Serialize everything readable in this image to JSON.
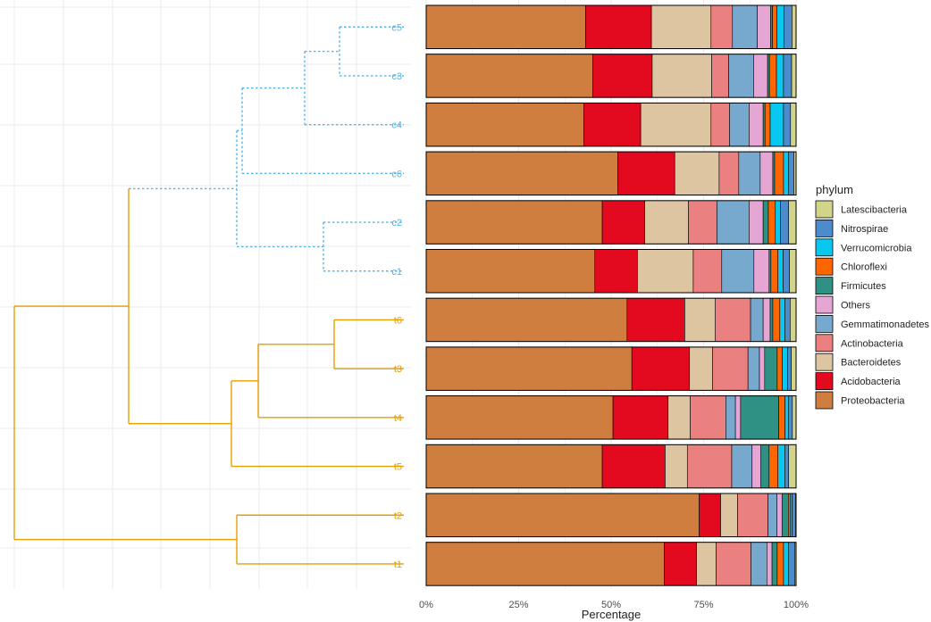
{
  "chart_data": [
    {
      "type": "dendrogram",
      "leaves": [
        "c5",
        "c3",
        "c4",
        "c6",
        "c2",
        "c1",
        "t6",
        "t3",
        "t4",
        "t5",
        "t2",
        "t1"
      ],
      "clusters": [
        {
          "group": "c",
          "color": "#56b4e9",
          "style": "dotted"
        },
        {
          "group": "t",
          "color": "#e69f00",
          "style": "solid"
        }
      ]
    },
    {
      "type": "bar",
      "orientation": "horizontal",
      "stacked": true,
      "xlabel": "Percentage",
      "xticks": [
        "0%",
        "25%",
        "50%",
        "75%",
        "100%"
      ],
      "xlim": [
        0,
        100
      ],
      "categories": [
        "c5",
        "c3",
        "c4",
        "c6",
        "c2",
        "c1",
        "t6",
        "t3",
        "t4",
        "t5",
        "t2",
        "t1"
      ],
      "legend": {
        "title": "phylum",
        "position": "right",
        "order": [
          "Latescibacteria",
          "Nitrospirae",
          "Verrucomicrobia",
          "Chloroflexi",
          "Firmicutes",
          "Others",
          "Gemmatimonadetes",
          "Actinobacteria",
          "Bacteroidetes",
          "Acidobacteria",
          "Proteobacteria"
        ]
      },
      "series": [
        {
          "name": "Proteobacteria",
          "color": "#d07e40",
          "values": [
            43.1,
            45.0,
            42.6,
            51.8,
            47.6,
            45.6,
            54.3,
            55.6,
            50.5,
            47.6,
            73.8,
            64.4
          ]
        },
        {
          "name": "Acidobacteria",
          "color": "#e30a1f",
          "values": [
            17.8,
            16.1,
            15.4,
            15.4,
            11.5,
            11.5,
            15.6,
            15.6,
            14.9,
            17.0,
            5.8,
            8.7
          ]
        },
        {
          "name": "Bacteroidetes",
          "color": "#ddc5a2",
          "values": [
            16.1,
            16.1,
            19.0,
            12.0,
            11.8,
            15.1,
            8.2,
            6.2,
            6.0,
            6.0,
            4.6,
            5.3
          ]
        },
        {
          "name": "Actinobacteria",
          "color": "#ea8080",
          "values": [
            5.8,
            4.6,
            5.0,
            5.3,
            7.7,
            7.7,
            9.6,
            9.6,
            9.6,
            12.0,
            8.2,
            9.4
          ]
        },
        {
          "name": "Gemmatimonadetes",
          "color": "#77a9cf",
          "values": [
            6.7,
            6.7,
            5.3,
            5.8,
            8.7,
            8.7,
            3.4,
            3.1,
            2.6,
            5.5,
            2.4,
            4.3
          ]
        },
        {
          "name": "Others",
          "color": "#e6a6d4",
          "values": [
            3.6,
            3.8,
            3.8,
            3.4,
            3.8,
            4.1,
            1.9,
            1.4,
            1.4,
            2.4,
            1.4,
            1.4
          ]
        },
        {
          "name": "Firmicutes",
          "color": "#2f9184",
          "values": [
            0.5,
            0.5,
            0.5,
            0.5,
            1.4,
            0.5,
            0.7,
            3.4,
            10.3,
            2.2,
            1.7,
            1.4
          ]
        },
        {
          "name": "Chloroflexi",
          "color": "#ff6600",
          "values": [
            1.2,
            1.9,
            1.4,
            2.4,
            1.9,
            1.9,
            1.9,
            1.4,
            1.7,
            2.4,
            0.5,
            1.7
          ]
        },
        {
          "name": "Verrucomicrobia",
          "color": "#08c8f0",
          "values": [
            1.9,
            1.9,
            3.6,
            1.4,
            1.4,
            1.4,
            1.4,
            1.4,
            1.0,
            1.9,
            0.5,
            1.4
          ]
        },
        {
          "name": "Nitrospirae",
          "color": "#4d8ccc",
          "values": [
            2.2,
            2.2,
            1.9,
            1.4,
            2.2,
            1.7,
            1.4,
            1.0,
            1.0,
            1.0,
            1.0,
            1.7
          ]
        },
        {
          "name": "Latescibacteria",
          "color": "#d2d48a",
          "values": [
            1.1,
            1.2,
            1.5,
            0.6,
            2.0,
            1.8,
            1.6,
            1.3,
            1.0,
            2.0,
            0.1,
            0.3
          ]
        }
      ]
    }
  ]
}
